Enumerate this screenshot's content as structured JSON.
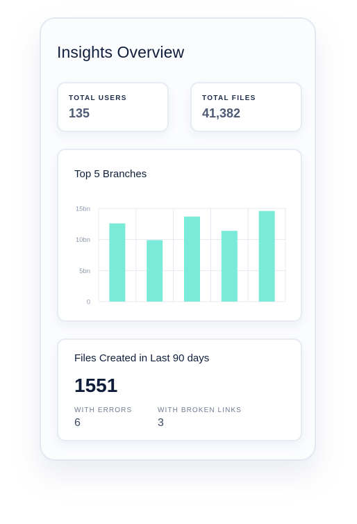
{
  "panel": {
    "title": "Insights Overview"
  },
  "stats": {
    "total_users": {
      "label": "TOTAL USERS",
      "value": "135"
    },
    "total_files": {
      "label": "TOTAL FILES",
      "value": "41,382"
    }
  },
  "chart_data": {
    "type": "bar",
    "title": "Top 5 Branches",
    "categories": [
      "",
      "",
      "",
      "",
      ""
    ],
    "values": [
      12.6,
      9.9,
      13.7,
      11.4,
      14.6
    ],
    "unit": "bn",
    "ylim": [
      0,
      15
    ],
    "yticks": [
      0,
      5,
      10,
      15
    ],
    "ytick_labels": [
      "0",
      "5bn",
      "10bn",
      "15bn"
    ],
    "grid": true,
    "bar_color": "#7aead9",
    "grid_color": "#e4e8f0"
  },
  "files_created": {
    "title": "Files Created in Last 90 days",
    "total": "1551",
    "with_errors": {
      "label": "WITH ERRORS",
      "value": "6"
    },
    "with_broken_links": {
      "label": "WITH BROKEN LINKS",
      "value": "3"
    }
  },
  "colors": {
    "accent": "#7aead9",
    "text_primary": "#0f1d3a",
    "text_muted": "#6f7a92",
    "border": "#e3e8f2"
  }
}
